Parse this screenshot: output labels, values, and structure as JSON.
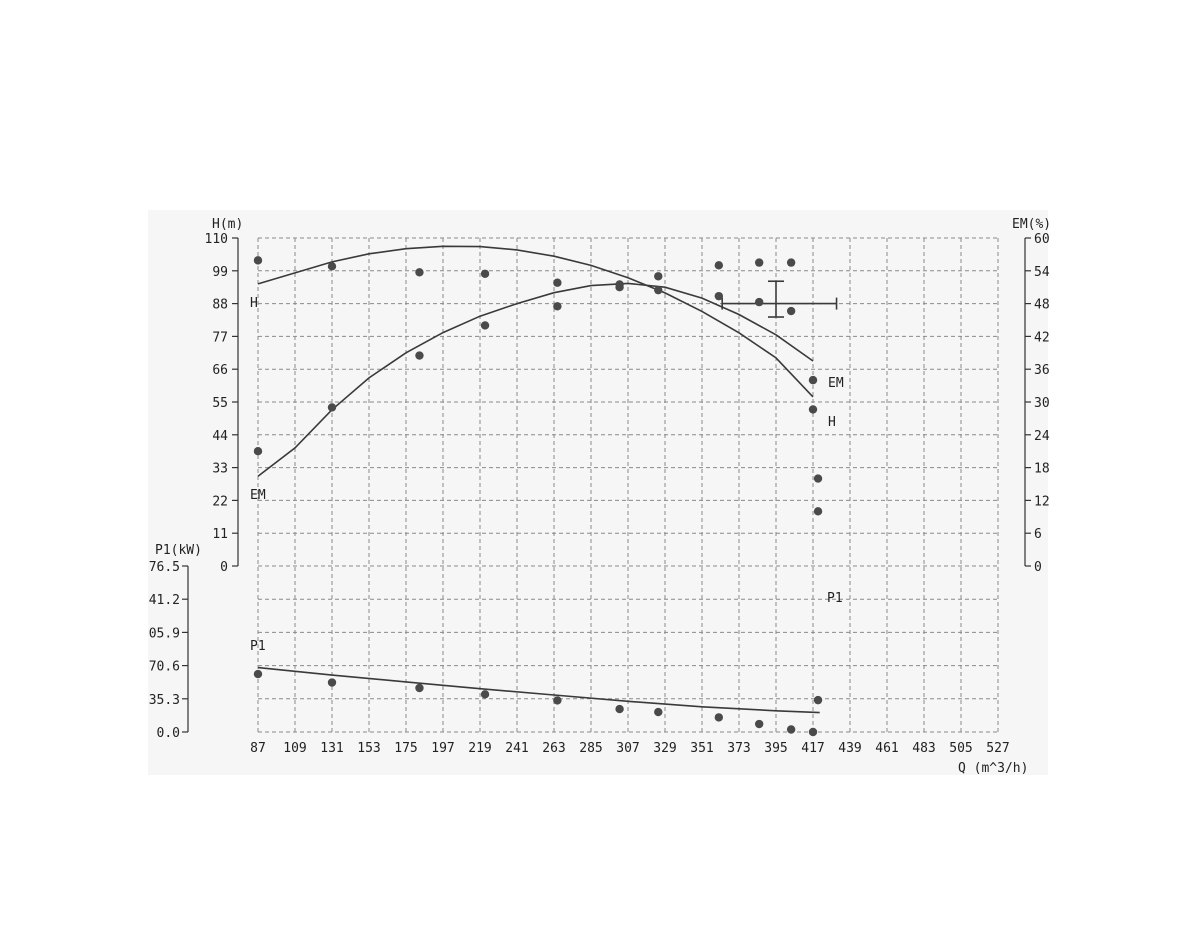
{
  "chart_data": {
    "type": "line",
    "xlabel": "Q (m^3/h)",
    "x_ticks": [
      "87",
      "109",
      "131",
      "153",
      "175",
      "197",
      "219",
      "241",
      "263",
      "285",
      "307",
      "329",
      "351",
      "373",
      "395",
      "417",
      "439",
      "461",
      "483",
      "505",
      "527"
    ],
    "xlim": [
      87,
      527
    ],
    "upper_plot": {
      "left_axis": {
        "label": "H(m)",
        "ticks": [
          "110",
          "99",
          "88",
          "77",
          "66",
          "55",
          "44",
          "33",
          "22",
          "11",
          "0"
        ],
        "ylim": [
          0,
          110
        ]
      },
      "right_axis": {
        "label": "EM(%)",
        "ticks": [
          "60",
          "54",
          "48",
          "42",
          "36",
          "30",
          "24",
          "18",
          "12",
          "6",
          "0"
        ],
        "ylim": [
          0,
          60
        ]
      },
      "series": [
        {
          "name": "H",
          "axis": "left",
          "curve": [
            [
              87,
              94.6
            ],
            [
              131,
              102
            ],
            [
              153,
              104.7
            ],
            [
              175,
              106.4
            ],
            [
              197,
              107.2
            ],
            [
              219,
              107.1
            ],
            [
              241,
              106
            ],
            [
              263,
              103.9
            ],
            [
              285,
              100.8
            ],
            [
              307,
              96.7
            ],
            [
              329,
              91.6
            ],
            [
              351,
              85.4
            ],
            [
              373,
              78.2
            ],
            [
              395,
              69.8
            ],
            [
              417,
              56.7
            ]
          ],
          "points": [
            [
              87,
              102.5
            ],
            [
              131,
              100.5
            ],
            [
              183,
              98.5
            ],
            [
              222,
              98
            ],
            [
              265,
              95
            ],
            [
              302,
              93.5
            ],
            [
              325,
              92.5
            ],
            [
              361,
              90.5
            ],
            [
              385,
              88.5
            ],
            [
              404,
              85.5
            ],
            [
              417,
              52.5
            ]
          ]
        },
        {
          "name": "EM",
          "axis": "right",
          "curve": [
            [
              87,
              16.4
            ],
            [
              109,
              21.6
            ],
            [
              131,
              28.6
            ],
            [
              153,
              34.4
            ],
            [
              175,
              39
            ],
            [
              197,
              42.7
            ],
            [
              219,
              45.7
            ],
            [
              241,
              48
            ],
            [
              263,
              50
            ],
            [
              285,
              51.3
            ],
            [
              307,
              51.7
            ],
            [
              329,
              51
            ],
            [
              351,
              49
            ],
            [
              373,
              46
            ],
            [
              395,
              42.3
            ],
            [
              417,
              37.5
            ]
          ],
          "points": [
            [
              87,
              21
            ],
            [
              131,
              29
            ],
            [
              183,
              38.5
            ],
            [
              222,
              44
            ],
            [
              265,
              47.5
            ],
            [
              302,
              51.5
            ],
            [
              325,
              53
            ],
            [
              361,
              55
            ],
            [
              385,
              55.5
            ],
            [
              404,
              55.5
            ],
            [
              417,
              34
            ],
            [
              420,
              16
            ],
            [
              420,
              10
            ]
          ]
        }
      ],
      "marker": {
        "x": 395,
        "y": 88,
        "x_range": [
          363,
          431
        ],
        "y_range": [
          83.5,
          95.5
        ]
      }
    },
    "lower_plot": {
      "label": "P1(kW)",
      "ticks": [
        "76.5",
        "41.2",
        "05.9",
        "70.6",
        "35.3",
        "0.0"
      ],
      "series": [
        {
          "name": "P1",
          "curve_frac": [
            [
              87,
              0.612
            ],
            [
              131,
              0.657
            ],
            [
              175,
              0.698
            ],
            [
              219,
              0.739
            ],
            [
              263,
              0.777
            ],
            [
              307,
              0.815
            ],
            [
              351,
              0.848
            ],
            [
              395,
              0.872
            ],
            [
              421,
              0.883
            ]
          ],
          "points_frac": [
            [
              87,
              0.651
            ],
            [
              131,
              0.702
            ],
            [
              183,
              0.735
            ],
            [
              222,
              0.773
            ],
            [
              265,
              0.81
            ],
            [
              302,
              0.862
            ],
            [
              325,
              0.88
            ],
            [
              361,
              0.912
            ],
            [
              385,
              0.952
            ],
            [
              404,
              0.985
            ],
            [
              417,
              1.0
            ],
            [
              420,
              0.808
            ]
          ]
        }
      ]
    },
    "grid": true
  }
}
